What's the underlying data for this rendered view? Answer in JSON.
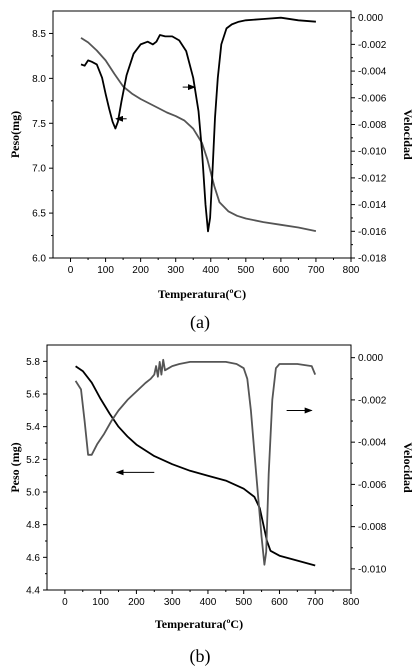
{
  "chart_data": [
    {
      "type": "line",
      "panel_label": "(a)",
      "xlabel": "Temperatura(ºC)",
      "ylabel": "Peso(mg)",
      "y2label": "Velocidad",
      "xlim": [
        -50,
        800
      ],
      "ylim": [
        6.0,
        8.75
      ],
      "y2lim": [
        -0.018,
        0.0005
      ],
      "xticks": [
        0,
        100,
        200,
        300,
        400,
        500,
        600,
        700,
        800
      ],
      "yticks": [
        6.0,
        6.5,
        7.0,
        7.5,
        8.0,
        8.5
      ],
      "y2ticks": [
        0.0,
        -0.002,
        -0.004,
        -0.006,
        -0.008,
        -0.01,
        -0.012,
        -0.014,
        -0.016,
        -0.018
      ],
      "tick_labels_y": [
        "6.0",
        "6.5",
        "7.0",
        "7.5",
        "8.0",
        "8.5"
      ],
      "tick_labels_y2": [
        "0.000",
        "-0.002",
        "-0.004",
        "-0.006",
        "-0.008",
        "-0.010",
        "-0.012",
        "-0.014",
        "-0.016",
        "-0.018"
      ],
      "series": [
        {
          "axis": "left",
          "color": "#555555",
          "x": [
            30,
            50,
            75,
            100,
            125,
            150,
            175,
            200,
            225,
            250,
            275,
            300,
            325,
            350,
            375,
            390,
            400,
            410,
            425,
            450,
            475,
            500,
            550,
            600,
            650,
            700
          ],
          "y": [
            8.45,
            8.4,
            8.31,
            8.2,
            8.05,
            7.91,
            7.83,
            7.77,
            7.72,
            7.67,
            7.62,
            7.58,
            7.53,
            7.44,
            7.28,
            7.1,
            6.95,
            6.8,
            6.62,
            6.52,
            6.47,
            6.44,
            6.4,
            6.37,
            6.34,
            6.3
          ]
        },
        {
          "axis": "right",
          "color": "#000000",
          "x": [
            30,
            40,
            50,
            60,
            75,
            90,
            100,
            110,
            120,
            128,
            135,
            145,
            160,
            180,
            200,
            220,
            235,
            245,
            255,
            270,
            290,
            310,
            330,
            350,
            365,
            375,
            385,
            392,
            398,
            405,
            412,
            420,
            430,
            445,
            460,
            480,
            500,
            550,
            600,
            650,
            700
          ],
          "y": [
            -0.0035,
            -0.0036,
            -0.0032,
            -0.0033,
            -0.0035,
            -0.0045,
            -0.0057,
            -0.0068,
            -0.0078,
            -0.0083,
            -0.0078,
            -0.0063,
            -0.0043,
            -0.0027,
            -0.002,
            -0.0018,
            -0.002,
            -0.0018,
            -0.0013,
            -0.0014,
            -0.0014,
            -0.0017,
            -0.0025,
            -0.0045,
            -0.007,
            -0.01,
            -0.014,
            -0.016,
            -0.015,
            -0.0115,
            -0.0075,
            -0.0045,
            -0.002,
            -0.0008,
            -0.0005,
            -0.0003,
            -0.0002,
            -0.0001,
            0.0,
            -0.0002,
            -0.0003
          ]
        }
      ],
      "arrows": [
        {
          "x1": 160,
          "x2": 130,
          "y": 7.55,
          "axis": "left"
        },
        {
          "x1": 320,
          "x2": 355,
          "y": -0.0052,
          "axis": "right"
        }
      ]
    },
    {
      "type": "line",
      "panel_label": "(b)",
      "xlabel": "Temperatura(ºC)",
      "ylabel": "Peso (mg)",
      "y2label": "Velocidad",
      "xlim": [
        -50,
        800
      ],
      "ylim": [
        4.4,
        5.9
      ],
      "y2lim": [
        -0.011,
        0.0006
      ],
      "xticks": [
        0,
        100,
        200,
        300,
        400,
        500,
        600,
        700,
        800
      ],
      "yticks": [
        4.4,
        4.6,
        4.8,
        5.0,
        5.2,
        5.4,
        5.6,
        5.8
      ],
      "y2ticks": [
        0.0,
        -0.002,
        -0.004,
        -0.006,
        -0.008,
        -0.01
      ],
      "tick_labels_y": [
        "4.4",
        "4.6",
        "4.8",
        "5.0",
        "5.2",
        "5.4",
        "5.6",
        "5.8"
      ],
      "tick_labels_y2": [
        "0.000",
        "-0.002",
        "-0.004",
        "-0.006",
        "-0.008",
        "-0.010"
      ],
      "series": [
        {
          "axis": "left",
          "color": "#000000",
          "x": [
            30,
            50,
            75,
            100,
            125,
            150,
            175,
            200,
            250,
            300,
            350,
            400,
            450,
            500,
            530,
            545,
            555,
            565,
            575,
            600,
            650,
            700
          ],
          "y": [
            5.77,
            5.74,
            5.67,
            5.57,
            5.48,
            5.4,
            5.34,
            5.29,
            5.22,
            5.17,
            5.13,
            5.1,
            5.07,
            5.02,
            4.97,
            4.9,
            4.8,
            4.7,
            4.64,
            4.61,
            4.58,
            4.55
          ]
        },
        {
          "axis": "right",
          "color": "#555555",
          "x": [
            30,
            45,
            55,
            65,
            75,
            90,
            110,
            130,
            150,
            175,
            200,
            225,
            240,
            250,
            255,
            260,
            265,
            270,
            275,
            280,
            290,
            300,
            320,
            350,
            400,
            450,
            480,
            500,
            510,
            520,
            530,
            540,
            550,
            558,
            563,
            570,
            580,
            590,
            600,
            650,
            690,
            700
          ],
          "y": [
            -0.0011,
            -0.0015,
            -0.003,
            -0.0046,
            -0.0046,
            -0.0041,
            -0.0036,
            -0.003,
            -0.0025,
            -0.002,
            -0.0016,
            -0.0012,
            -0.001,
            -0.0008,
            -0.0004,
            -0.0009,
            -0.0002,
            -0.0008,
            -0.0001,
            -0.0006,
            -0.0005,
            -0.0004,
            -0.0003,
            -0.0002,
            -0.0002,
            -0.0002,
            -0.0003,
            -0.0005,
            -0.001,
            -0.0025,
            -0.0045,
            -0.0065,
            -0.0085,
            -0.0098,
            -0.0092,
            -0.0055,
            -0.002,
            -0.0005,
            -0.0003,
            -0.0003,
            -0.0004,
            -0.0008
          ]
        }
      ],
      "arrows": [
        {
          "x1": 250,
          "x2": 145,
          "y": 5.12,
          "axis": "left"
        },
        {
          "x1": 620,
          "x2": 690,
          "y": -0.0025,
          "axis": "right"
        }
      ]
    }
  ]
}
